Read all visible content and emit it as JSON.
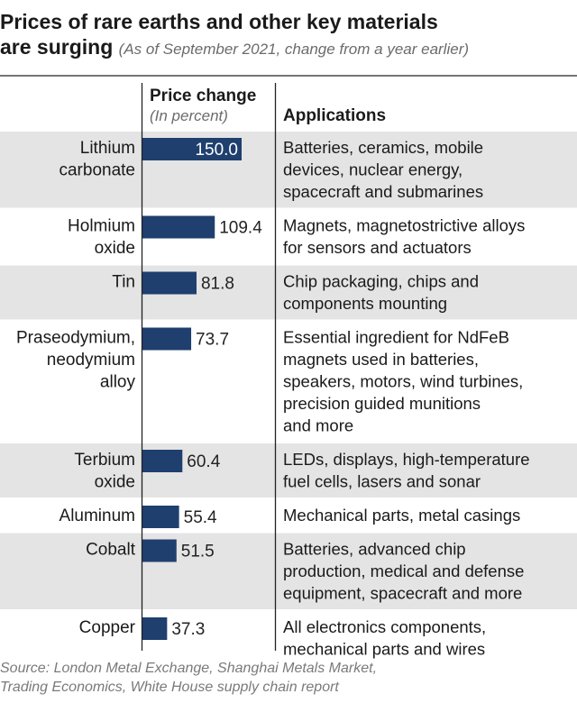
{
  "title": {
    "line1": "Prices of rare earths and other key materials",
    "line2": "are surging",
    "subtitle": "(As of September 2021, change from a year earlier)"
  },
  "headers": {
    "price_change": "Price change",
    "price_change_unit": "(In percent)",
    "applications": "Applications"
  },
  "source": {
    "line1": "Source: London Metal Exchange, Shanghai Metals Market,",
    "line2": "Trading Economics, White House supply chain report"
  },
  "colors": {
    "bar": "#1f3f6e",
    "band": "#e4e4e4",
    "rule": "#222222",
    "value_inside": "#ffffff",
    "value_outside": "#222222"
  },
  "chart_data": {
    "type": "bar",
    "orientation": "horizontal",
    "title": "Prices of rare earths and other key materials are surging",
    "subtitle": "(As of September 2021, change from a year earlier)",
    "value_label": "Price change (In percent)",
    "xlim": [
      0,
      150
    ],
    "grid": false,
    "legend": "none",
    "rows": [
      {
        "material": [
          "Lithium",
          "carbonate"
        ],
        "value": 150.0,
        "value_label": "150.0",
        "label_inside": true,
        "applications": [
          "Batteries, ceramics, mobile",
          "devices, nuclear energy,",
          "spacecraft and submarines"
        ]
      },
      {
        "material": [
          "Holmium",
          "oxide"
        ],
        "value": 109.4,
        "value_label": "109.4",
        "label_inside": false,
        "applications": [
          "Magnets, magnetostrictive alloys",
          "for sensors and actuators"
        ]
      },
      {
        "material": [
          "Tin"
        ],
        "value": 81.8,
        "value_label": "81.8",
        "label_inside": false,
        "applications": [
          "Chip packaging, chips and",
          "components mounting"
        ]
      },
      {
        "material": [
          "Praseodymium,",
          "neodymium",
          "alloy"
        ],
        "value": 73.7,
        "value_label": "73.7",
        "label_inside": false,
        "applications": [
          "Essential ingredient for NdFeB",
          "magnets used in batteries,",
          "speakers, motors, wind turbines,",
          "precision guided munitions",
          "and more"
        ]
      },
      {
        "material": [
          "Terbium",
          "oxide"
        ],
        "value": 60.4,
        "value_label": "60.4",
        "label_inside": false,
        "applications": [
          "LEDs, displays, high-temperature",
          "fuel cells, lasers and sonar"
        ]
      },
      {
        "material": [
          "Aluminum"
        ],
        "value": 55.4,
        "value_label": "55.4",
        "label_inside": false,
        "applications": [
          "Mechanical parts, metal casings"
        ]
      },
      {
        "material": [
          "Cobalt"
        ],
        "value": 51.5,
        "value_label": "51.5",
        "label_inside": false,
        "applications": [
          "Batteries, advanced chip",
          "production, medical and defense",
          "equipment, spacecraft and more"
        ]
      },
      {
        "material": [
          "Copper"
        ],
        "value": 37.3,
        "value_label": "37.3",
        "label_inside": false,
        "applications": [
          "All electronics components,",
          "mechanical parts and wires"
        ]
      }
    ]
  }
}
